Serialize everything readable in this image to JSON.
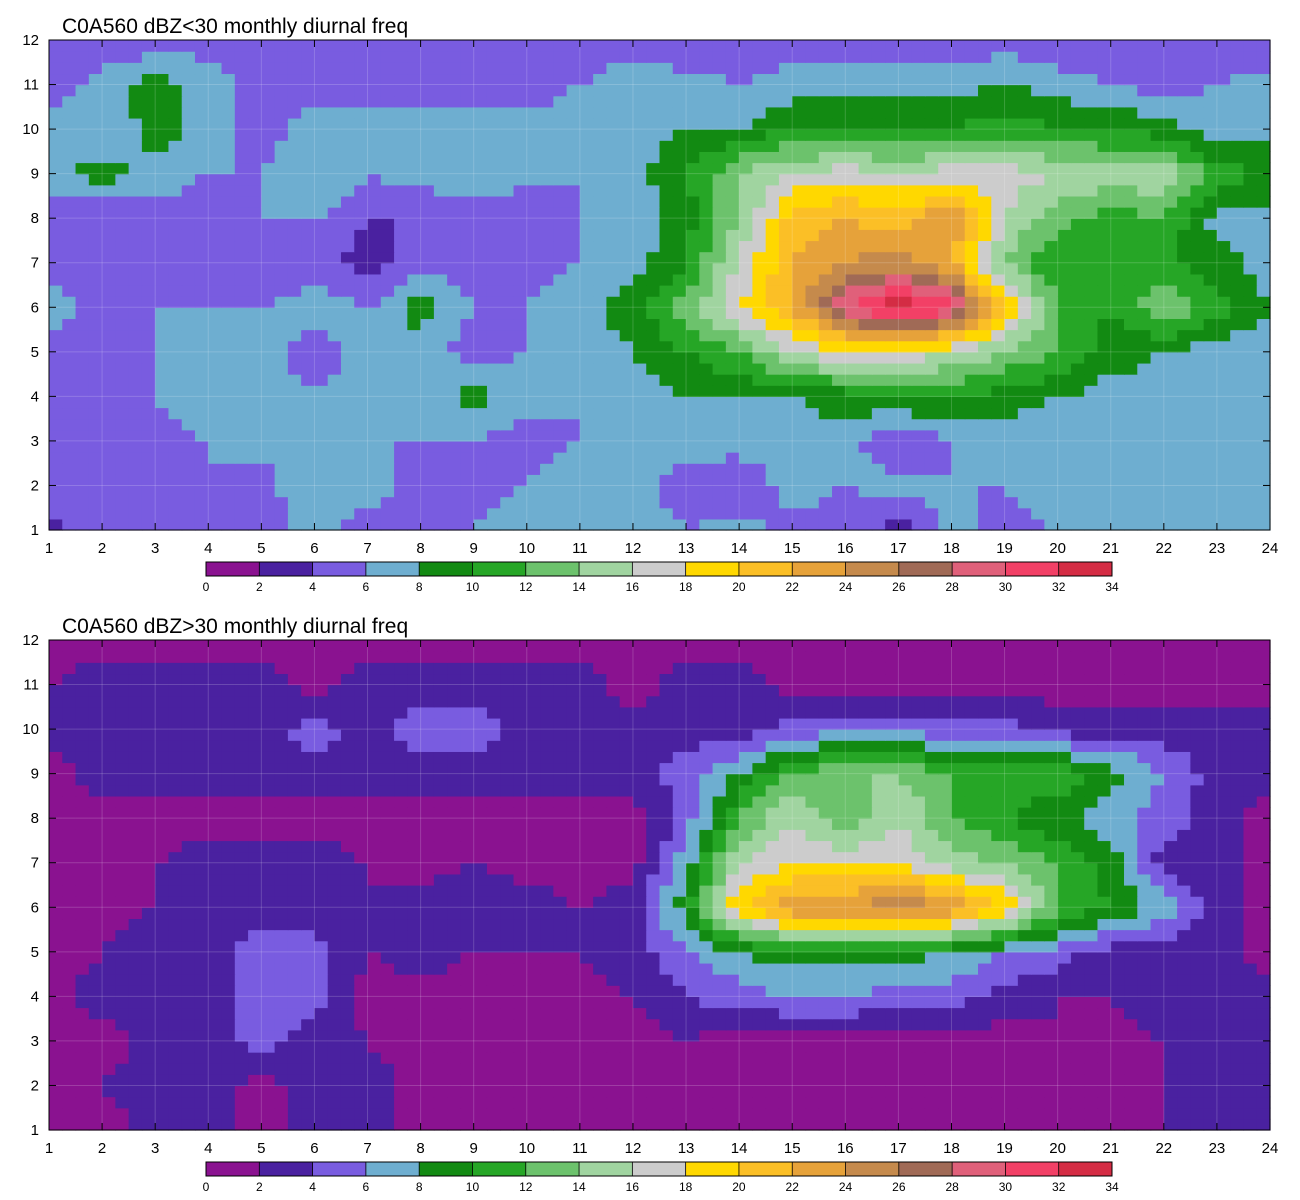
{
  "chart_data": [
    {
      "type": "heatmap",
      "title": "C0A560 dBZ<30 monthly diurnal freq",
      "xlabel": "",
      "ylabel": "",
      "x": [
        1,
        2,
        3,
        4,
        5,
        6,
        7,
        8,
        9,
        10,
        11,
        12,
        13,
        14,
        15,
        16,
        17,
        18,
        19,
        20,
        21,
        22,
        23,
        24
      ],
      "y": [
        1,
        2,
        3,
        4,
        5,
        6,
        7,
        8,
        9,
        10,
        11,
        12
      ],
      "xlim": [
        1,
        24
      ],
      "ylim": [
        1,
        12
      ],
      "grid": true,
      "legend": "colorbar-bottom",
      "colorbar": {
        "levels": [
          0,
          2,
          4,
          6,
          8,
          10,
          12,
          14,
          16,
          18,
          20,
          22,
          24,
          26,
          28,
          30,
          32,
          34
        ],
        "colors": [
          "#8a1290",
          "#4a21a0",
          "#795ce0",
          "#6eaed0",
          "#128a12",
          "#26a626",
          "#6cc26c",
          "#a0d4a0",
          "#cccccc",
          "#ffd800",
          "#fbbf26",
          "#e6a23a",
          "#c58a4c",
          "#a06a56",
          "#e0607a",
          "#f24066",
          "#d42c44"
        ]
      },
      "grid_values": [
        [
          3,
          5,
          5,
          4,
          5,
          7,
          5,
          6,
          6,
          7,
          6,
          7,
          6,
          7,
          5,
          5,
          3,
          7,
          5,
          6,
          6,
          7,
          6,
          7
        ],
        [
          6,
          6,
          5,
          6,
          5,
          8,
          7,
          5,
          5,
          6,
          7,
          7,
          5,
          4,
          7,
          6,
          7,
          6,
          6,
          8,
          7,
          7,
          6,
          7
        ],
        [
          5,
          5,
          5,
          6,
          7,
          7,
          6,
          6,
          6,
          5,
          6,
          7,
          7,
          7,
          7,
          7,
          4,
          6,
          7,
          6,
          6,
          7,
          7,
          7
        ],
        [
          4,
          5,
          6,
          7,
          7,
          6,
          7,
          7,
          9,
          7,
          6,
          7,
          8,
          8,
          8,
          9,
          10,
          10,
          9,
          8,
          7,
          7,
          7,
          7
        ],
        [
          5,
          5,
          6,
          7,
          7,
          5,
          7,
          7,
          5,
          6,
          7,
          8,
          10,
          12,
          16,
          18,
          18,
          16,
          14,
          12,
          9,
          8,
          7,
          6
        ],
        [
          7,
          5,
          6,
          6,
          6,
          7,
          6,
          9,
          6,
          6,
          7,
          9,
          13,
          18,
          22,
          30,
          34,
          31,
          20,
          12,
          10,
          14,
          11,
          8
        ],
        [
          5,
          5,
          4,
          5,
          4,
          5,
          3,
          5,
          5,
          5,
          6,
          7,
          10,
          16,
          22,
          24,
          25,
          22,
          14,
          10,
          10,
          10,
          9,
          7
        ],
        [
          4,
          4,
          5,
          5,
          6,
          6,
          4,
          4,
          5,
          4,
          6,
          7,
          9,
          14,
          21,
          22,
          21,
          24,
          16,
          13,
          11,
          12,
          7,
          7
        ],
        [
          7,
          9,
          7,
          6,
          6,
          8,
          6,
          7,
          7,
          7,
          6,
          7,
          10,
          14,
          16,
          17,
          16,
          17,
          17,
          16,
          15,
          16,
          11,
          10
        ],
        [
          7,
          6,
          9,
          7,
          5,
          7,
          7,
          7,
          7,
          7,
          7,
          7,
          8,
          8,
          10,
          10,
          10,
          10,
          11,
          10,
          10,
          9,
          7,
          7
        ],
        [
          5,
          7,
          9,
          7,
          5,
          5,
          5,
          5,
          5,
          5,
          6,
          7,
          7,
          6,
          7,
          7,
          7,
          7,
          8,
          7,
          6,
          5,
          6,
          7
        ],
        [
          4,
          4,
          5,
          5,
          5,
          5,
          4,
          4,
          4,
          5,
          5,
          5,
          4,
          4,
          5,
          5,
          5,
          5,
          5,
          4,
          4,
          4,
          4,
          4
        ]
      ]
    },
    {
      "type": "heatmap",
      "title": "C0A560 dBZ>30 monthly diurnal freq",
      "xlabel": "",
      "ylabel": "",
      "x": [
        1,
        2,
        3,
        4,
        5,
        6,
        7,
        8,
        9,
        10,
        11,
        12,
        13,
        14,
        15,
        16,
        17,
        18,
        19,
        20,
        21,
        22,
        23,
        24
      ],
      "y": [
        1,
        2,
        3,
        4,
        5,
        6,
        7,
        8,
        9,
        10,
        11,
        12
      ],
      "xlim": [
        1,
        24
      ],
      "ylim": [
        1,
        12
      ],
      "grid": true,
      "legend": "colorbar-bottom",
      "colorbar": {
        "levels": [
          0,
          2,
          4,
          6,
          8,
          10,
          12,
          14,
          16,
          18,
          20,
          22,
          24,
          26,
          28,
          30,
          32,
          34
        ],
        "colors": [
          "#8a1290",
          "#4a21a0",
          "#795ce0",
          "#6eaed0",
          "#128a12",
          "#26a626",
          "#6cc26c",
          "#a0d4a0",
          "#cccccc",
          "#ffd800",
          "#fbbf26",
          "#e6a23a",
          "#c58a4c",
          "#a06a56",
          "#e0607a",
          "#f24066",
          "#d42c44"
        ]
      },
      "grid_values": [
        [
          1,
          1,
          3,
          3,
          1,
          3,
          3,
          1,
          1,
          2,
          1,
          1,
          1,
          1,
          1,
          1,
          1,
          1,
          1,
          2,
          1,
          2,
          3,
          3
        ],
        [
          1,
          2,
          3,
          3,
          1,
          3,
          3,
          1,
          2,
          1,
          1,
          1,
          1,
          1,
          2,
          1,
          1,
          1,
          1,
          1,
          2,
          2,
          3,
          3
        ],
        [
          1,
          1,
          3,
          3,
          5,
          3,
          2,
          1,
          1,
          1,
          1,
          1,
          2,
          1,
          1,
          1,
          1,
          1,
          1,
          2,
          1,
          2,
          3,
          3
        ],
        [
          1,
          3,
          3,
          3,
          5,
          5,
          1,
          1,
          1,
          1,
          1,
          2,
          4,
          5,
          6,
          6,
          5,
          5,
          3,
          2,
          2,
          3,
          3,
          3
        ],
        [
          1,
          2,
          3,
          3,
          5,
          5,
          2,
          3,
          2,
          2,
          2,
          3,
          6,
          8,
          9,
          9,
          9,
          8,
          6,
          5,
          3,
          3,
          3,
          1
        ],
        [
          1,
          1,
          2,
          3,
          3,
          3,
          2,
          3,
          4,
          3,
          2,
          3,
          9,
          20,
          24,
          24,
          26,
          24,
          20,
          12,
          10,
          7,
          3,
          1
        ],
        [
          1,
          1,
          2,
          3,
          3,
          3,
          2,
          1,
          2,
          1,
          1,
          1,
          7,
          16,
          18,
          18,
          18,
          15,
          14,
          12,
          9,
          3,
          3,
          1
        ],
        [
          1,
          1,
          1,
          1,
          1,
          1,
          1,
          1,
          1,
          1,
          1,
          1,
          5,
          12,
          16,
          12,
          16,
          12,
          10,
          8,
          7,
          5,
          3,
          1
        ],
        [
          1,
          3,
          3,
          3,
          3,
          3,
          3,
          3,
          3,
          3,
          3,
          3,
          5,
          8,
          12,
          14,
          14,
          12,
          12,
          12,
          9,
          6,
          3,
          3
        ],
        [
          3,
          3,
          3,
          4,
          3,
          5,
          3,
          5,
          5,
          3,
          3,
          3,
          3,
          3,
          5,
          5,
          5,
          5,
          5,
          3,
          3,
          3,
          3,
          3
        ],
        [
          2,
          3,
          3,
          3,
          3,
          1,
          3,
          3,
          3,
          3,
          3,
          1,
          3,
          3,
          1,
          1,
          1,
          1,
          1,
          1,
          1,
          1,
          1,
          1
        ],
        [
          1,
          1,
          1,
          1,
          1,
          1,
          1,
          1,
          1,
          1,
          1,
          1,
          1,
          1,
          1,
          1,
          1,
          1,
          1,
          1,
          1,
          1,
          1,
          1
        ]
      ]
    }
  ]
}
